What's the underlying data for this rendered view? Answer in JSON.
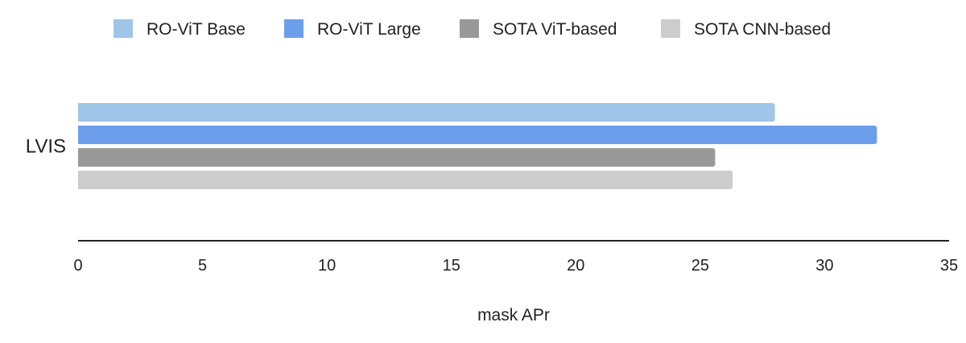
{
  "chart_data": {
    "type": "bar",
    "orientation": "horizontal",
    "title": "",
    "categories": [
      "LVIS"
    ],
    "series": [
      {
        "name": "RO-ViT Base",
        "values": [
          28.0
        ],
        "color": "#9fc5e8"
      },
      {
        "name": "RO-ViT Large",
        "values": [
          32.1
        ],
        "color": "#6d9eeb"
      },
      {
        "name": "SOTA ViT-based",
        "values": [
          25.6
        ],
        "color": "#999999"
      },
      {
        "name": "SOTA CNN-based",
        "values": [
          26.3
        ],
        "color": "#cccccc"
      }
    ],
    "xlabel": "mask APr",
    "ylabel": "",
    "xlim": [
      0,
      35
    ],
    "xticks": [
      "0",
      "5",
      "10",
      "15",
      "20",
      "25",
      "30",
      "35"
    ],
    "grid": false,
    "legend_position": "top"
  }
}
